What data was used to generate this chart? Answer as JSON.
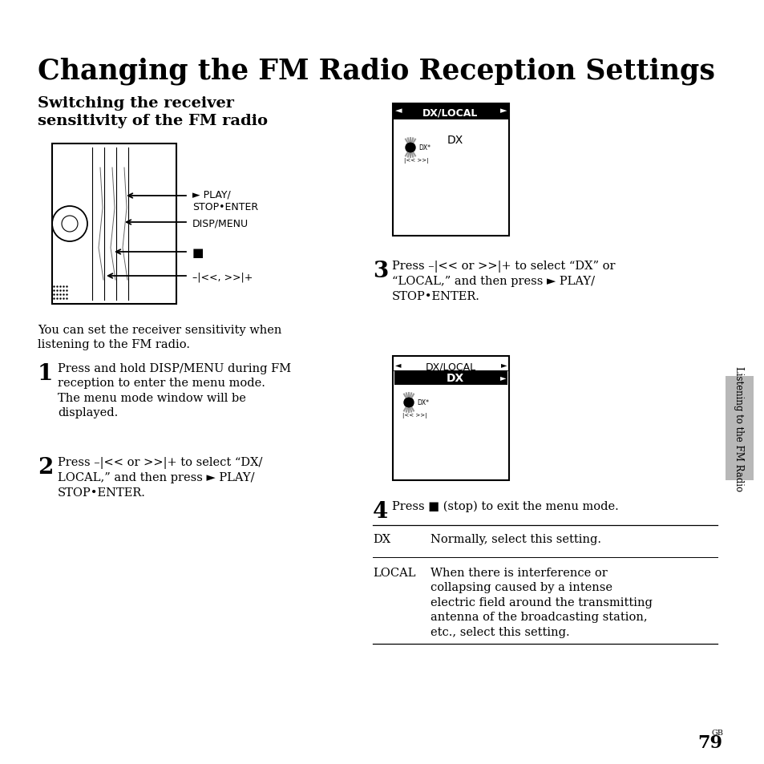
{
  "title": "Changing the FM Radio Reception Settings",
  "subtitle": "Switching the receiver\nsensitivity of the FM radio",
  "body_text": "You can set the receiver sensitivity when\nlistening to the FM radio.",
  "step1_text": "Press and hold DISP/MENU during FM\nreception to enter the menu mode.\nThe menu mode window will be\ndisplayed.",
  "step2_text": "Press –|<< or >>|+ to select “DX/\nLOCAL,” and then press ► PLAY/\nSTOP•ENTER.",
  "step3_text": "Press –|<< or >>|+ to select “DX” or\n“LOCAL,” and then press ► PLAY/\nSTOP•ENTER.",
  "step4_text": "Press ■ (stop) to exit the menu mode.",
  "table_dx_label": "DX",
  "table_dx_desc": "Normally, select this setting.",
  "table_local_label": "LOCAL",
  "table_local_desc": "When there is interference or\ncollapsing caused by a intense\nelectric field around the transmitting\nantenna of the broadcasting station,\netc., select this setting.",
  "page_num": "79",
  "page_suffix": "GB",
  "side_text": "Listening to the FM Radio",
  "bg_color": "#ffffff",
  "text_color": "#000000",
  "label_play": "► PLAY/\nSTOP•ENTER",
  "label_disp": "DISP/MENU",
  "label_stop": "■",
  "label_nav": "–|<<, >>|+"
}
